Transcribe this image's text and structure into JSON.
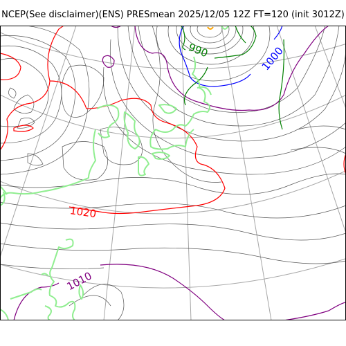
{
  "title": "NCEP(See disclaimer)(ENS) PRESmean 2025/12/05 12Z FT=120 (init 3012Z)",
  "map": {
    "variable": "PRESmean",
    "contour_labels": [
      {
        "text": "990",
        "color": "#008000"
      },
      {
        "text": "1000",
        "color": "#0000ff"
      },
      {
        "text": "1020",
        "color": "#ff0000"
      },
      {
        "text": "1010",
        "color": "#800080"
      }
    ],
    "colors": {
      "isobar": "#555555",
      "isobar_990": "#008000",
      "isobar_1000": "#0000ff",
      "isobar_1010": "#800080",
      "isobar_1020": "#ff0000",
      "graticule": "#a6a6a6",
      "coastline": "#90ee90",
      "low_center": "#ffa500"
    }
  }
}
